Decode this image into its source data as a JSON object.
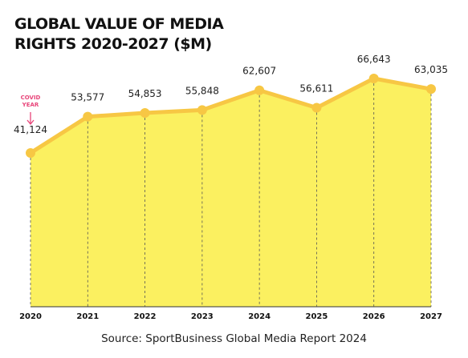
{
  "chart_data": {
    "type": "area",
    "title": "GLOBAL VALUE OF MEDIA RIGHTS 2020-2027 ($M)",
    "categories": [
      "2020",
      "2021",
      "2022",
      "2023",
      "2024",
      "2025",
      "2026",
      "2027"
    ],
    "values": [
      41124,
      53577,
      54853,
      55848,
      62607,
      56611,
      66643,
      63035
    ],
    "value_labels": [
      "41,124",
      "53,577",
      "54,853",
      "55,848",
      "62,607",
      "56,611",
      "66,643",
      "63,035"
    ],
    "color": "#f7c744",
    "fill": "#fbf060",
    "annotation": "COVID YEAR",
    "source": "Source: SportBusiness Global Media Report 2024"
  }
}
